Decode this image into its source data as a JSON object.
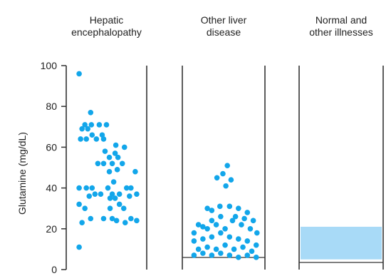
{
  "chart_data": {
    "type": "scatter",
    "ylabel": "Glutamine (mg/dL)",
    "ylim": [
      0,
      100
    ],
    "yticks": [
      0,
      20,
      40,
      60,
      80,
      100
    ],
    "colors": {
      "points": "#12A6EA",
      "range": "#A8DAF7",
      "axis": "#333333"
    },
    "panels": [
      {
        "title_lines": [
          "Hepatic",
          "encephalopathy"
        ],
        "points": [
          [
            0.12,
            96
          ],
          [
            0.28,
            77
          ],
          [
            0.2,
            71
          ],
          [
            0.29,
            71
          ],
          [
            0.4,
            71
          ],
          [
            0.5,
            71
          ],
          [
            0.16,
            69
          ],
          [
            0.24,
            69
          ],
          [
            0.3,
            66
          ],
          [
            0.44,
            66
          ],
          [
            0.14,
            64
          ],
          [
            0.22,
            64
          ],
          [
            0.36,
            64
          ],
          [
            0.46,
            64
          ],
          [
            0.63,
            61
          ],
          [
            0.75,
            60
          ],
          [
            0.48,
            58
          ],
          [
            0.62,
            57
          ],
          [
            0.54,
            55
          ],
          [
            0.66,
            55
          ],
          [
            0.38,
            52
          ],
          [
            0.46,
            52
          ],
          [
            0.58,
            52
          ],
          [
            0.72,
            52
          ],
          [
            0.65,
            49
          ],
          [
            0.54,
            48
          ],
          [
            0.9,
            48
          ],
          [
            0.6,
            43
          ],
          [
            0.12,
            40
          ],
          [
            0.22,
            40
          ],
          [
            0.3,
            40
          ],
          [
            0.52,
            40
          ],
          [
            0.78,
            40
          ],
          [
            0.84,
            40
          ],
          [
            0.34,
            37
          ],
          [
            0.42,
            37
          ],
          [
            0.58,
            37
          ],
          [
            0.68,
            37
          ],
          [
            0.92,
            37
          ],
          [
            0.26,
            36
          ],
          [
            0.82,
            36
          ],
          [
            0.55,
            35
          ],
          [
            0.62,
            35
          ],
          [
            0.12,
            32
          ],
          [
            0.68,
            32
          ],
          [
            0.2,
            30
          ],
          [
            0.55,
            30
          ],
          [
            0.74,
            30
          ],
          [
            0.28,
            25
          ],
          [
            0.46,
            25
          ],
          [
            0.58,
            25
          ],
          [
            0.84,
            25
          ],
          [
            0.64,
            24
          ],
          [
            0.92,
            24
          ],
          [
            0.16,
            23
          ],
          [
            0.76,
            23
          ],
          [
            0.12,
            11
          ]
        ]
      },
      {
        "title_lines": [
          "Other liver",
          "disease"
        ],
        "points": [
          [
            0.55,
            51
          ],
          [
            0.49,
            47
          ],
          [
            0.6,
            44
          ],
          [
            0.41,
            45
          ],
          [
            0.53,
            41
          ],
          [
            0.28,
            30
          ],
          [
            0.34,
            29
          ],
          [
            0.45,
            31
          ],
          [
            0.58,
            31
          ],
          [
            0.7,
            30
          ],
          [
            0.82,
            28
          ],
          [
            0.1,
            18
          ],
          [
            0.22,
            21
          ],
          [
            0.34,
            24
          ],
          [
            0.46,
            26
          ],
          [
            0.62,
            24
          ],
          [
            0.74,
            22
          ],
          [
            0.86,
            20
          ],
          [
            0.95,
            18
          ],
          [
            0.16,
            22
          ],
          [
            0.28,
            20
          ],
          [
            0.4,
            22
          ],
          [
            0.52,
            20
          ],
          [
            0.66,
            26
          ],
          [
            0.78,
            25
          ],
          [
            0.9,
            24
          ],
          [
            0.1,
            14
          ],
          [
            0.22,
            15
          ],
          [
            0.34,
            16
          ],
          [
            0.46,
            18
          ],
          [
            0.58,
            16
          ],
          [
            0.7,
            15
          ],
          [
            0.82,
            14
          ],
          [
            0.94,
            12
          ],
          [
            0.16,
            10
          ],
          [
            0.28,
            11
          ],
          [
            0.4,
            10
          ],
          [
            0.52,
            12
          ],
          [
            0.64,
            10
          ],
          [
            0.76,
            11
          ],
          [
            0.88,
            9
          ],
          [
            0.1,
            7
          ],
          [
            0.22,
            8
          ],
          [
            0.34,
            7
          ],
          [
            0.46,
            8
          ],
          [
            0.58,
            7
          ],
          [
            0.7,
            6
          ],
          [
            0.82,
            7
          ],
          [
            0.94,
            6
          ]
        ]
      },
      {
        "title_lines": [
          "Normal and",
          "other illnesses"
        ],
        "range": [
          5,
          21
        ]
      }
    ]
  }
}
